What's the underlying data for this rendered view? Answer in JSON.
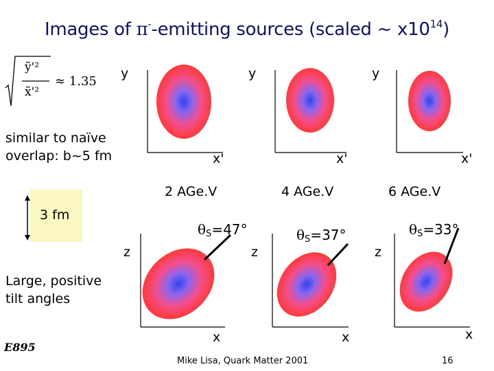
{
  "title": {
    "prefix": "Images of ",
    "pi": "π",
    "minus": "-",
    "middle": "-emitting sources (scaled ~ x10",
    "exponent": "14",
    "suffix": ")"
  },
  "formula": {
    "text": "≈ 1.35",
    "num": "ỹ'²",
    "den": "x̃'²"
  },
  "note_overlap": {
    "line1": "similar to naïve",
    "line2": "overlap: b~5 fm"
  },
  "scale_bar": {
    "label": "3 fm"
  },
  "tilt_note": {
    "line1": "Large, positive",
    "line2": "tilt angles"
  },
  "experiment": "E895",
  "panels": [
    {
      "energy": "2 AGe.V",
      "theta_symbol": "θ",
      "theta_sub": "S",
      "theta_value": "=47°",
      "y_axis": "y",
      "x_axis": "x'",
      "z_axis": "z",
      "x_lower": "x"
    },
    {
      "energy": "4 AGe.V",
      "theta_symbol": "θ",
      "theta_sub": "S",
      "theta_value": "=37°",
      "y_axis": "y",
      "x_axis": "x'",
      "z_axis": "z",
      "x_lower": "x"
    },
    {
      "energy": "6 AGe.V",
      "theta_symbol": "θ",
      "theta_sub": "S",
      "theta_value": "=33°",
      "y_axis": "y",
      "x_axis": "x'",
      "z_axis": "z",
      "x_lower": "x"
    }
  ],
  "footer": {
    "credit": "Mike Lisa, Quark Matter 2001",
    "page": "16"
  },
  "colors": {
    "title": "#111266",
    "blob_center": "#4450ee",
    "blob_edge": "#ff3838",
    "highlight": "#fbf7c3"
  }
}
